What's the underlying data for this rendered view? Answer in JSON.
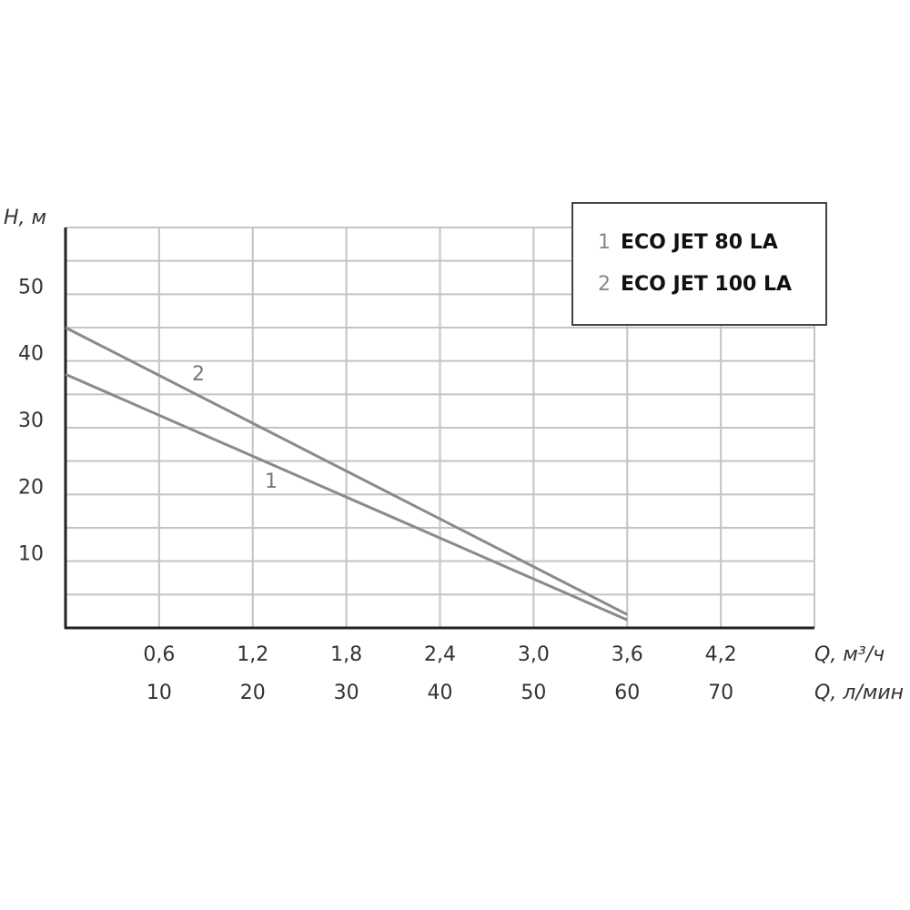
{
  "chart_data": {
    "type": "line",
    "ylabel": "H, м",
    "xlabel": "Q, м³/ч",
    "x2label": "Q, л/мин",
    "x": [
      0,
      3.6
    ],
    "series": [
      {
        "name": "ECO JET 80 LA",
        "label": "1",
        "color": "#8a8a8a",
        "values": [
          38,
          1.2
        ]
      },
      {
        "name": "ECO JET 100 LA",
        "label": "2",
        "color": "#8a8a8a",
        "values": [
          45,
          2
        ]
      }
    ],
    "xlim": [
      0,
      4.8
    ],
    "xticks": [
      {
        "value": 0.6,
        "label": "0,6"
      },
      {
        "value": 1.2,
        "label": "1,2"
      },
      {
        "value": 1.8,
        "label": "1,8"
      },
      {
        "value": 2.4,
        "label": "2,4"
      },
      {
        "value": 3.0,
        "label": "3,0"
      },
      {
        "value": 3.6,
        "label": "3,6"
      },
      {
        "value": 4.2,
        "label": "4,2"
      }
    ],
    "x2lim": [
      0,
      80
    ],
    "x2ticks": [
      10,
      20,
      30,
      40,
      50,
      60,
      70
    ],
    "ylim": [
      0,
      60
    ],
    "yticks": [
      10,
      20,
      30,
      40,
      50
    ],
    "minor_yticks": [
      5,
      15,
      25,
      35,
      45,
      55
    ],
    "grid": true
  }
}
